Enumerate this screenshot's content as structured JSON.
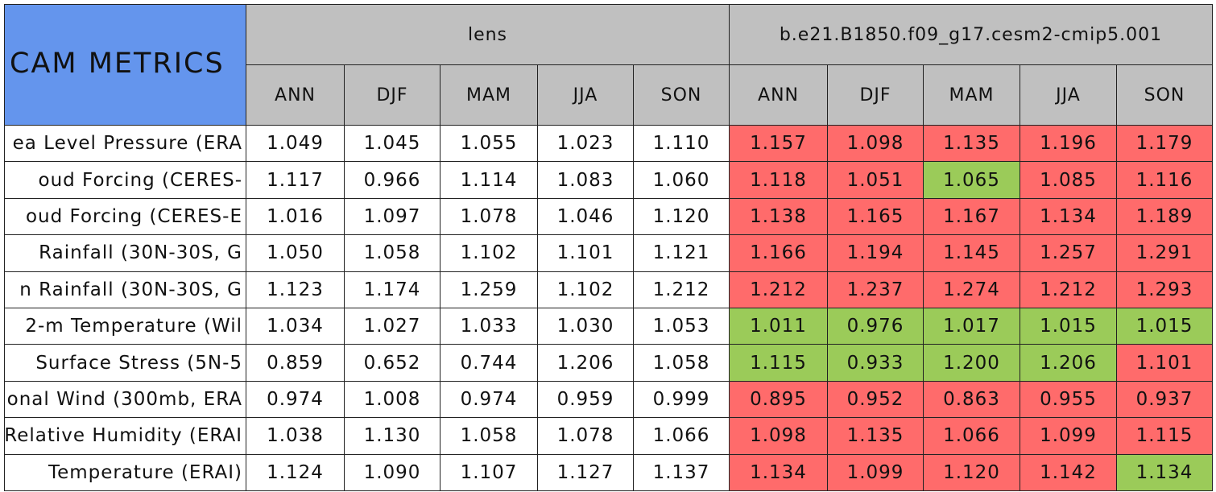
{
  "corner": "CAM METRICS",
  "groups": [
    {
      "title": "lens",
      "seasons": [
        "ANN",
        "DJF",
        "MAM",
        "JJA",
        "SON"
      ]
    },
    {
      "title": "b.e21.B1850.f09_g17.cesm2-cmip5.001",
      "seasons": [
        "ANN",
        "DJF",
        "MAM",
        "JJA",
        "SON"
      ]
    }
  ],
  "rows": [
    {
      "label": "ea Level Pressure (ERA",
      "values": [
        "1.049",
        "1.045",
        "1.055",
        "1.023",
        "1.110",
        "1.157",
        "1.098",
        "1.135",
        "1.196",
        "1.179"
      ],
      "colors": [
        "#ffffff",
        "#ffffff",
        "#ffffff",
        "#ffffff",
        "#ffffff",
        "#ff6b6b",
        "#ff6b6b",
        "#ff6b6b",
        "#ff6b6b",
        "#ff6b6b"
      ]
    },
    {
      "label": "oud Forcing (CERES-",
      "values": [
        "1.117",
        "0.966",
        "1.114",
        "1.083",
        "1.060",
        "1.118",
        "1.051",
        "1.065",
        "1.085",
        "1.116"
      ],
      "colors": [
        "#ffffff",
        "#ffffff",
        "#ffffff",
        "#ffffff",
        "#ffffff",
        "#ff6b6b",
        "#ff6b6b",
        "#9bcb59",
        "#ff6b6b",
        "#ff6b6b"
      ]
    },
    {
      "label": "oud Forcing (CERES-E",
      "values": [
        "1.016",
        "1.097",
        "1.078",
        "1.046",
        "1.120",
        "1.138",
        "1.165",
        "1.167",
        "1.134",
        "1.189"
      ],
      "colors": [
        "#ffffff",
        "#ffffff",
        "#ffffff",
        "#ffffff",
        "#ffffff",
        "#ff6b6b",
        "#ff6b6b",
        "#ff6b6b",
        "#ff6b6b",
        "#ff6b6b"
      ]
    },
    {
      "label": "Rainfall (30N-30S, G",
      "values": [
        "1.050",
        "1.058",
        "1.102",
        "1.101",
        "1.121",
        "1.166",
        "1.194",
        "1.145",
        "1.257",
        "1.291"
      ],
      "colors": [
        "#ffffff",
        "#ffffff",
        "#ffffff",
        "#ffffff",
        "#ffffff",
        "#ff6b6b",
        "#ff6b6b",
        "#ff6b6b",
        "#ff6b6b",
        "#ff6b6b"
      ]
    },
    {
      "label": "n Rainfall (30N-30S, G",
      "values": [
        "1.123",
        "1.174",
        "1.259",
        "1.102",
        "1.212",
        "1.212",
        "1.237",
        "1.274",
        "1.212",
        "1.293"
      ],
      "colors": [
        "#ffffff",
        "#ffffff",
        "#ffffff",
        "#ffffff",
        "#ffffff",
        "#ff6b6b",
        "#ff6b6b",
        "#ff6b6b",
        "#ff6b6b",
        "#ff6b6b"
      ]
    },
    {
      "label": "2-m Temperature (Wil",
      "values": [
        "1.034",
        "1.027",
        "1.033",
        "1.030",
        "1.053",
        "1.011",
        "0.976",
        "1.017",
        "1.015",
        "1.015"
      ],
      "colors": [
        "#ffffff",
        "#ffffff",
        "#ffffff",
        "#ffffff",
        "#ffffff",
        "#9bcb59",
        "#9bcb59",
        "#9bcb59",
        "#9bcb59",
        "#9bcb59"
      ]
    },
    {
      "label": "Surface Stress (5N-5",
      "values": [
        "0.859",
        "0.652",
        "0.744",
        "1.206",
        "1.058",
        "1.115",
        "0.933",
        "1.200",
        "1.206",
        "1.101"
      ],
      "colors": [
        "#ffffff",
        "#ffffff",
        "#ffffff",
        "#ffffff",
        "#ffffff",
        "#9bcb59",
        "#9bcb59",
        "#9bcb59",
        "#9bcb59",
        "#ff6b6b"
      ]
    },
    {
      "label": "onal Wind (300mb, ERA",
      "values": [
        "0.974",
        "1.008",
        "0.974",
        "0.959",
        "0.999",
        "0.895",
        "0.952",
        "0.863",
        "0.955",
        "0.937"
      ],
      "colors": [
        "#ffffff",
        "#ffffff",
        "#ffffff",
        "#ffffff",
        "#ffffff",
        "#ff6b6b",
        "#ff6b6b",
        "#ff6b6b",
        "#ff6b6b",
        "#ff6b6b"
      ]
    },
    {
      "label": "Relative Humidity (ERAI",
      "values": [
        "1.038",
        "1.130",
        "1.058",
        "1.078",
        "1.066",
        "1.098",
        "1.135",
        "1.066",
        "1.099",
        "1.115"
      ],
      "colors": [
        "#ffffff",
        "#ffffff",
        "#ffffff",
        "#ffffff",
        "#ffffff",
        "#ff6b6b",
        "#ff6b6b",
        "#ff6b6b",
        "#ff6b6b",
        "#ff6b6b"
      ]
    },
    {
      "label": "Temperature (ERAI)",
      "values": [
        "1.124",
        "1.090",
        "1.107",
        "1.127",
        "1.137",
        "1.134",
        "1.099",
        "1.120",
        "1.142",
        "1.134"
      ],
      "colors": [
        "#ffffff",
        "#ffffff",
        "#ffffff",
        "#ffffff",
        "#ffffff",
        "#ff6b6b",
        "#ff6b6b",
        "#ff6b6b",
        "#ff6b6b",
        "#9bcb59"
      ]
    }
  ]
}
